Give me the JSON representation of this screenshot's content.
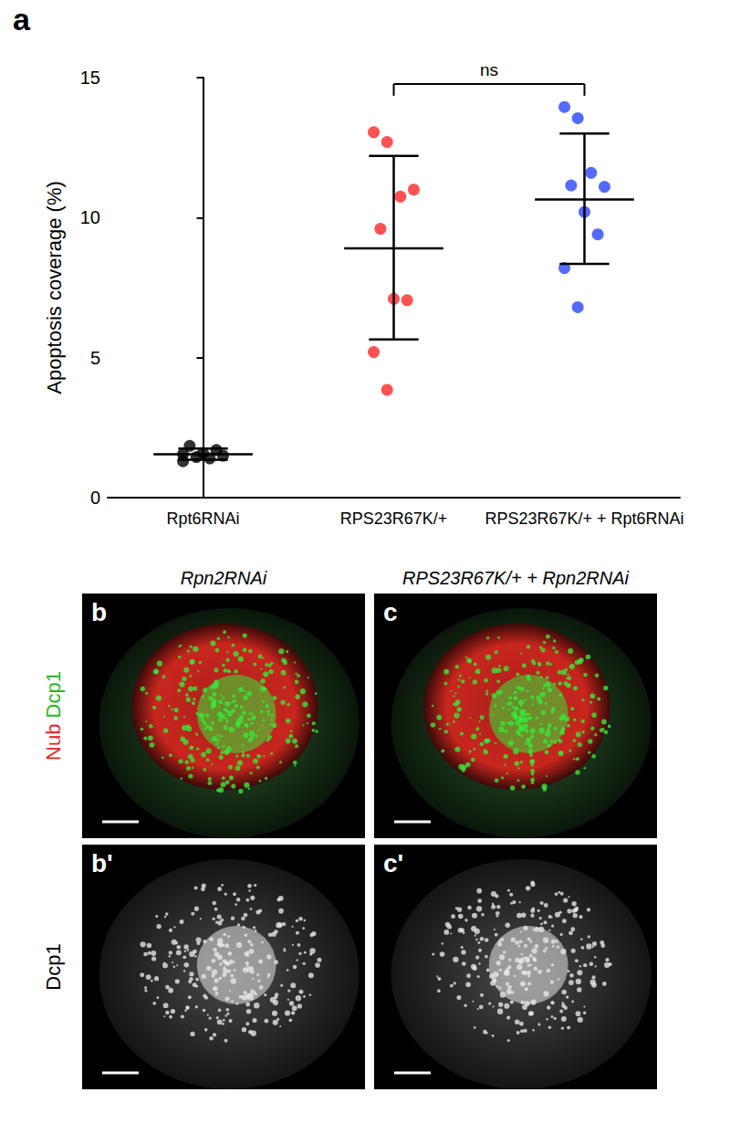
{
  "panel_label": "a",
  "chart_data": {
    "type": "scatter",
    "ylabel": "Apoptosis coverage (%)",
    "categories": [
      "Rpt6RNAi",
      "RPS23R67K/+",
      "RPS23R67K/+ + Rpt6RNAi"
    ],
    "values": [
      [
        1.55,
        1.45,
        1.4,
        1.5,
        1.85,
        1.6,
        1.7,
        1.3
      ],
      [
        13.05,
        12.7,
        10.75,
        11.0,
        9.6,
        7.1,
        7.05,
        5.2,
        3.85
      ],
      [
        13.95,
        13.55,
        11.6,
        11.1,
        11.15,
        10.2,
        9.4,
        8.2,
        6.8
      ]
    ],
    "colors": [
      "#000000",
      "#ff2626",
      "#2b45ff"
    ],
    "means": [
      1.55,
      8.9,
      10.65
    ],
    "error_low": [
      1.35,
      5.65,
      8.35
    ],
    "error_high": [
      1.75,
      12.2,
      13.0
    ],
    "ylim": [
      0,
      15
    ],
    "yticks": [
      0,
      5,
      10,
      15
    ],
    "grid": false,
    "annotations": [
      {
        "text": "ns",
        "from": 1,
        "to": 2
      }
    ]
  },
  "images": {
    "columns": [
      {
        "title": "Rpn2RNAi",
        "panels": [
          "b",
          "b'"
        ]
      },
      {
        "title": "RPS23R67K/+ + Rpn2RNAi",
        "panels": [
          "c",
          "c'"
        ]
      }
    ],
    "rows": [
      {
        "channels": [
          {
            "text": "Nub",
            "color": "#e8231e"
          },
          {
            "text": "Dcp1",
            "color": "#22b822"
          }
        ]
      },
      {
        "channels": [
          {
            "text": "Dcp1",
            "color": "#000000"
          }
        ]
      }
    ]
  }
}
